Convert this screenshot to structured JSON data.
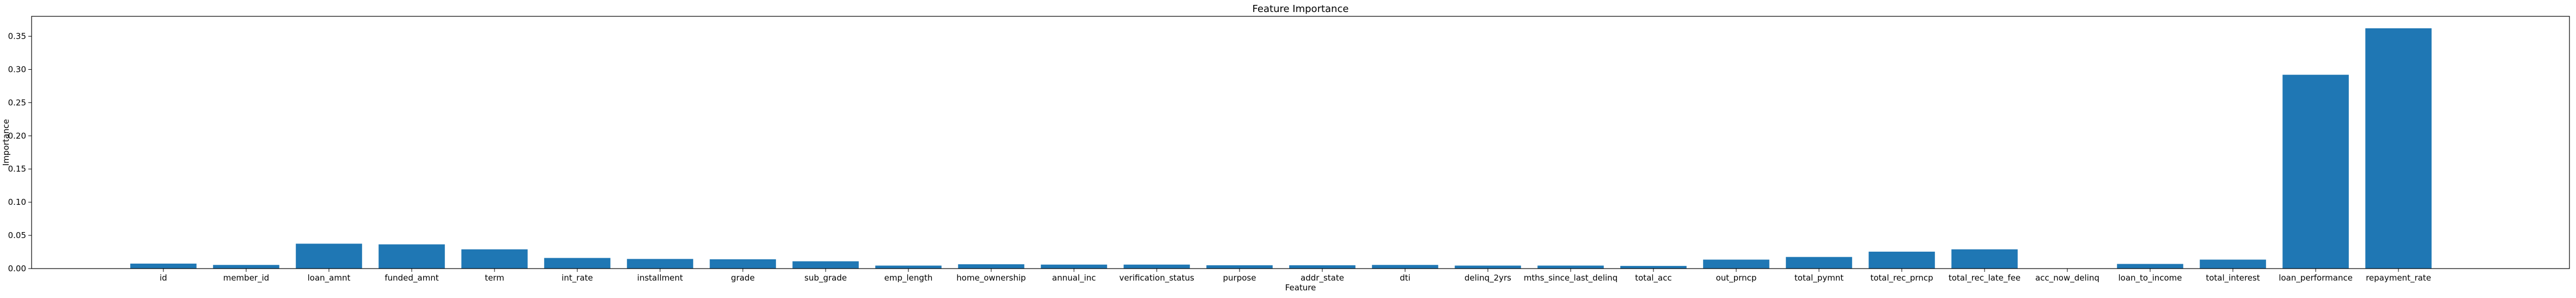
{
  "chart_data": {
    "type": "bar",
    "title": "Feature Importance",
    "xlabel": "Feature",
    "ylabel": "Importance",
    "ylim": [
      0,
      0.38
    ],
    "yticks": [
      0.0,
      0.05,
      0.1,
      0.15,
      0.2,
      0.25,
      0.3,
      0.35
    ],
    "ytick_labels": [
      "0.00",
      "0.05",
      "0.10",
      "0.15",
      "0.20",
      "0.25",
      "0.30",
      "0.35"
    ],
    "bar_color": "#1f77b4",
    "grid": false,
    "categories": [
      "id",
      "member_id",
      "loan_amnt",
      "funded_amnt",
      "term",
      "int_rate",
      "installment",
      "grade",
      "sub_grade",
      "emp_length",
      "home_ownership",
      "annual_inc",
      "verification_status",
      "purpose",
      "addr_state",
      "dti",
      "delinq_2yrs",
      "mths_since_last_delinq",
      "total_acc",
      "out_prncp",
      "total_pymnt",
      "total_rec_prncp",
      "total_rec_late_fee",
      "acc_now_delinq",
      "loan_to_income",
      "total_interest",
      "loan_performance",
      "repayment_rate"
    ],
    "values": [
      0.0075,
      0.0055,
      0.0375,
      0.0365,
      0.029,
      0.016,
      0.0145,
      0.014,
      0.011,
      0.0045,
      0.0065,
      0.006,
      0.006,
      0.005,
      0.005,
      0.0055,
      0.0045,
      0.0045,
      0.004,
      0.0135,
      0.0175,
      0.0255,
      0.029,
      0.0,
      0.007,
      0.0135,
      0.292,
      0.362
    ]
  }
}
